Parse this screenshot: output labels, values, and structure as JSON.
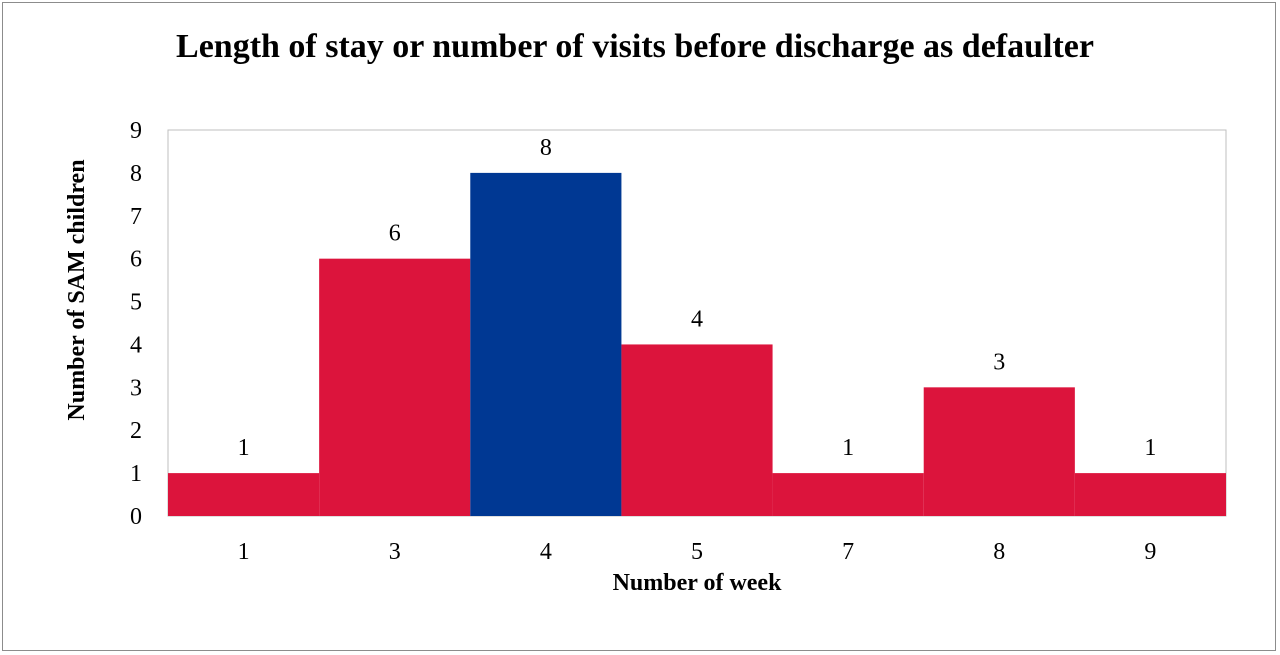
{
  "chart_data": {
    "type": "bar",
    "title": "Length of stay or number of visits before discharge as defaulter",
    "xlabel": "Number of week",
    "ylabel": "Number of SAM children",
    "categories": [
      "1",
      "3",
      "4",
      "5",
      "7",
      "8",
      "9"
    ],
    "values": [
      1,
      6,
      8,
      4,
      1,
      3,
      1
    ],
    "data_labels": [
      "1",
      "6",
      "8",
      "4",
      "1",
      "3",
      "1"
    ],
    "ylim": [
      0,
      9
    ],
    "yticks": [
      "0",
      "1",
      "2",
      "3",
      "4",
      "5",
      "6",
      "7",
      "8",
      "9"
    ],
    "bar_colors": [
      "#dc143c",
      "#dc143c",
      "#003893",
      "#dc143c",
      "#dc143c",
      "#dc143c",
      "#dc143c"
    ],
    "grid": false,
    "legend": "none"
  }
}
